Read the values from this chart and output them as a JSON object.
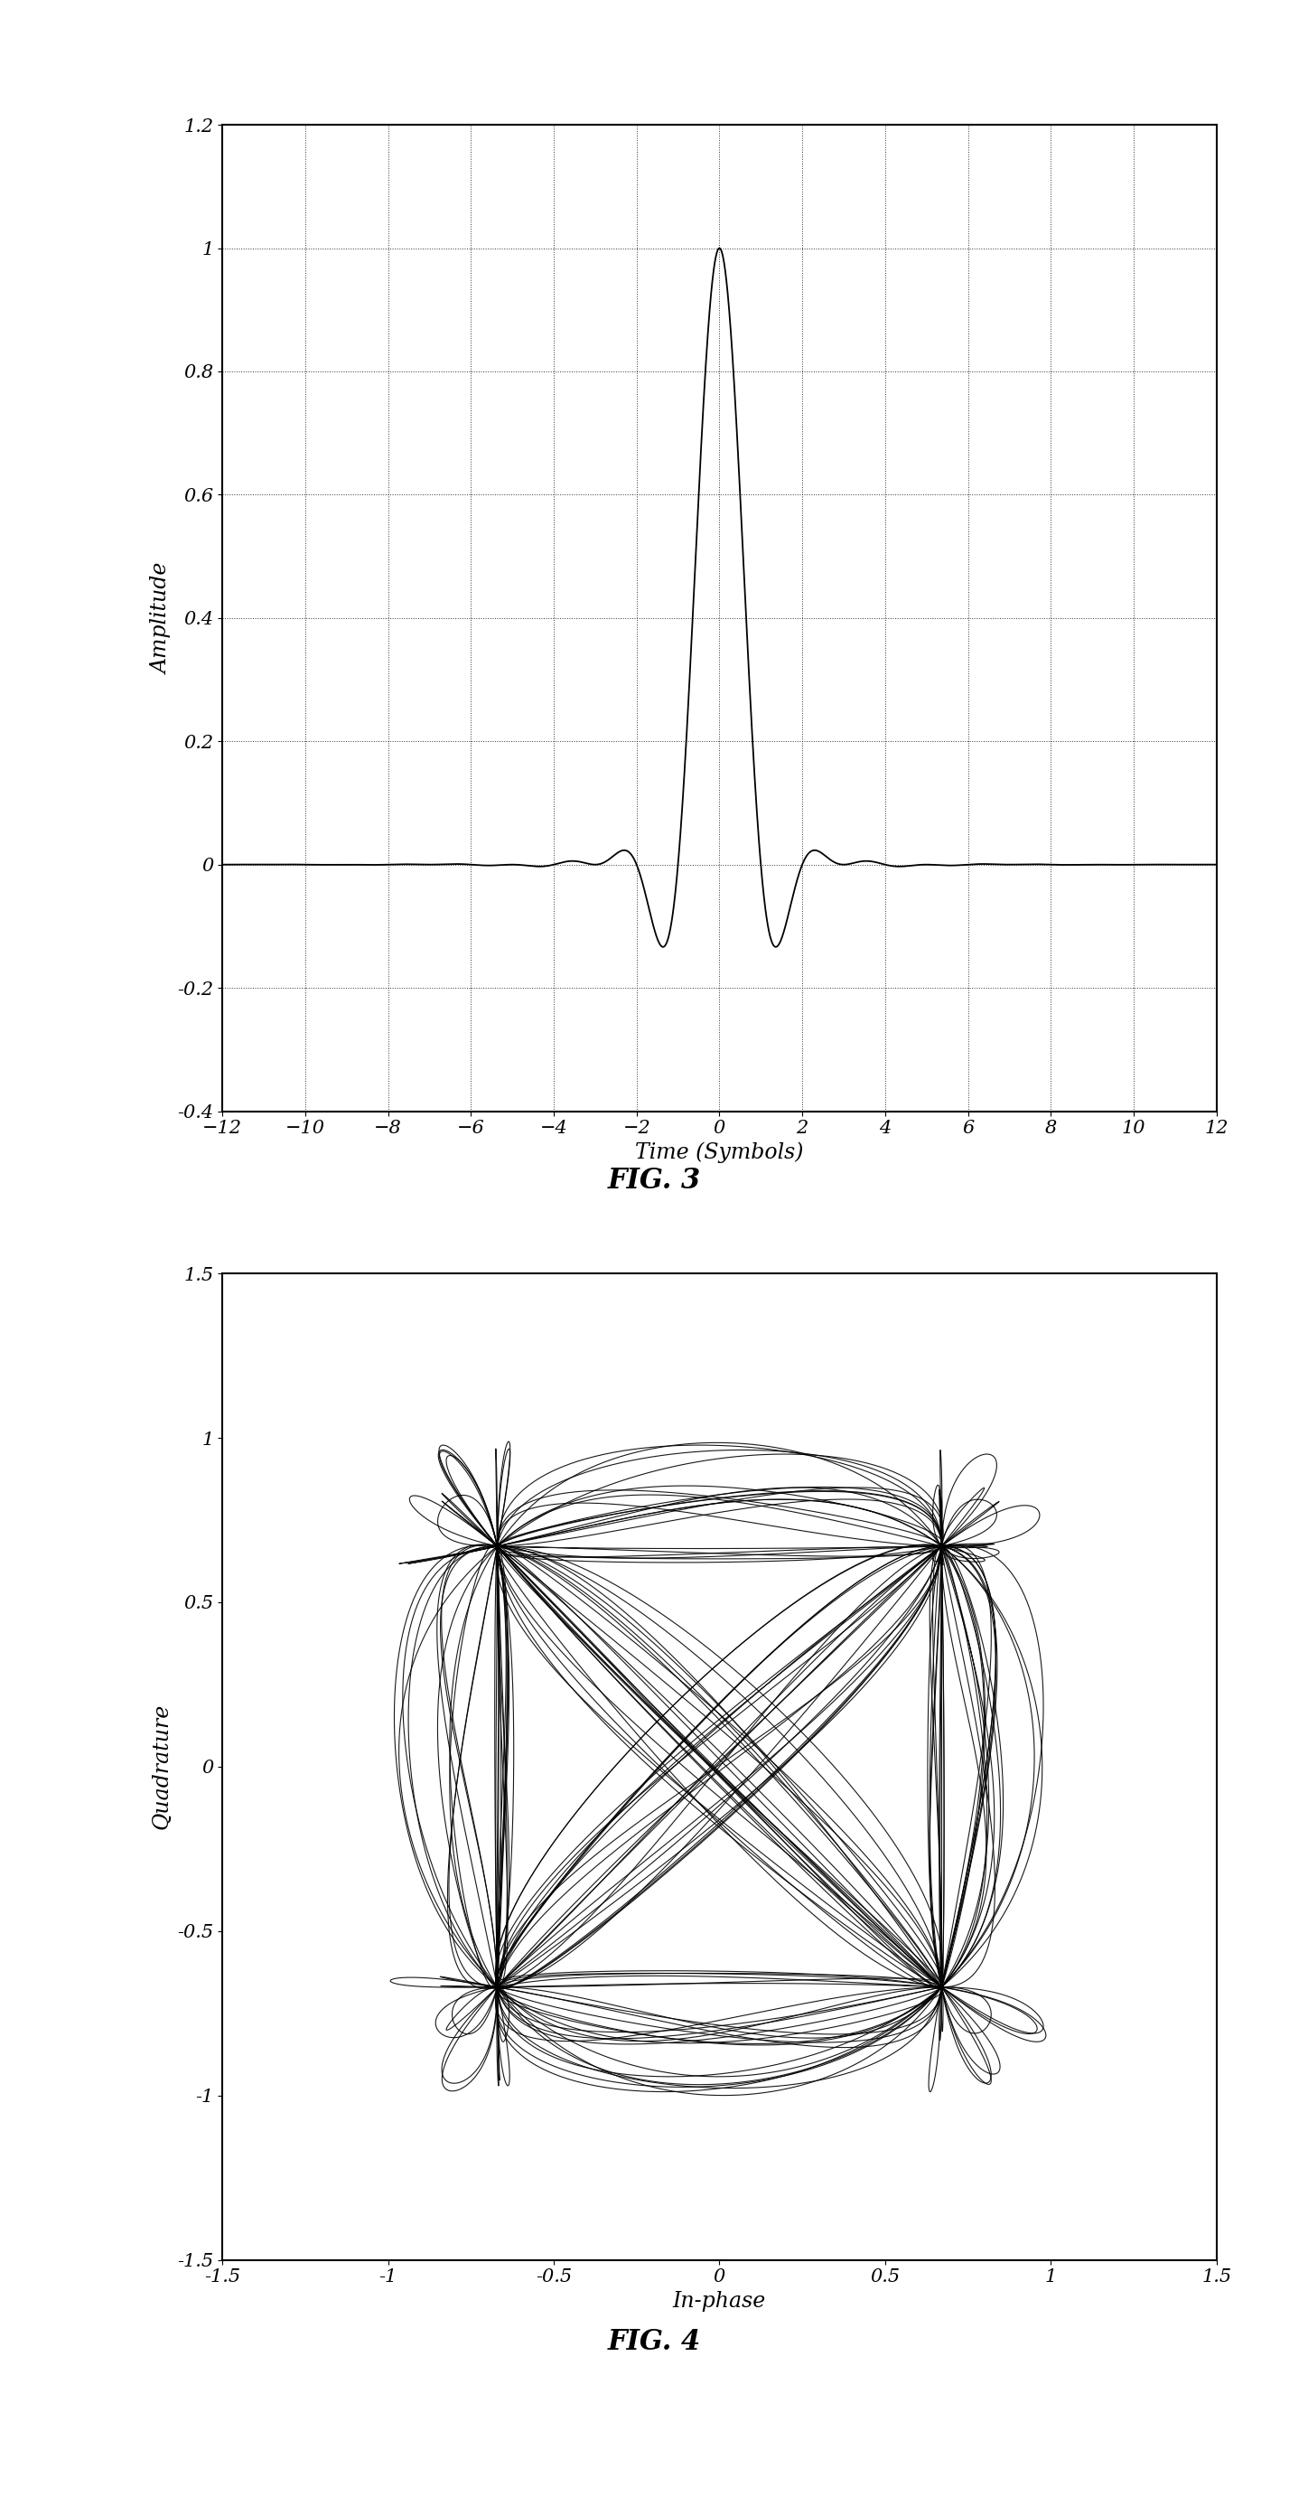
{
  "fig3": {
    "title": "FIG. 3",
    "xlabel": "Time (Symbols)",
    "ylabel": "Amplitude",
    "xlim": [
      -12,
      12
    ],
    "ylim": [
      -0.4,
      1.2
    ],
    "yticks": [
      -0.4,
      -0.2,
      0.0,
      0.2,
      0.4,
      0.6,
      0.8,
      1.0,
      1.2
    ],
    "xticks": [
      -12,
      -10,
      -8,
      -6,
      -4,
      -2,
      0,
      2,
      4,
      6,
      8,
      10,
      12
    ],
    "ytick_labels": [
      "-0.4",
      "-0.2",
      "0",
      "0.2",
      "0.4",
      "0.6",
      "0.8",
      "1",
      "1.2"
    ]
  },
  "fig4": {
    "title": "FIG. 4",
    "xlabel": "In-phase",
    "ylabel": "Quadrature",
    "xlim": [
      -1.5,
      1.5
    ],
    "ylim": [
      -1.5,
      1.5
    ],
    "xticks": [
      -1.5,
      -1.0,
      -0.5,
      0.0,
      0.5,
      1.0,
      1.5
    ],
    "yticks": [
      -1.5,
      -1.0,
      -0.5,
      0.0,
      0.5,
      1.0,
      1.5
    ],
    "xtick_labels": [
      "-1.5",
      "-1",
      "-0.5",
      "0",
      "0.5",
      "1",
      "1.5"
    ],
    "ytick_labels": [
      "-1.5",
      "-1",
      "-0.5",
      "0",
      "0.5",
      "1",
      "1.5"
    ]
  },
  "background_color": "#ffffff",
  "line_color": "#000000",
  "title_fontsize": 22,
  "label_fontsize": 17,
  "tick_fontsize": 15
}
